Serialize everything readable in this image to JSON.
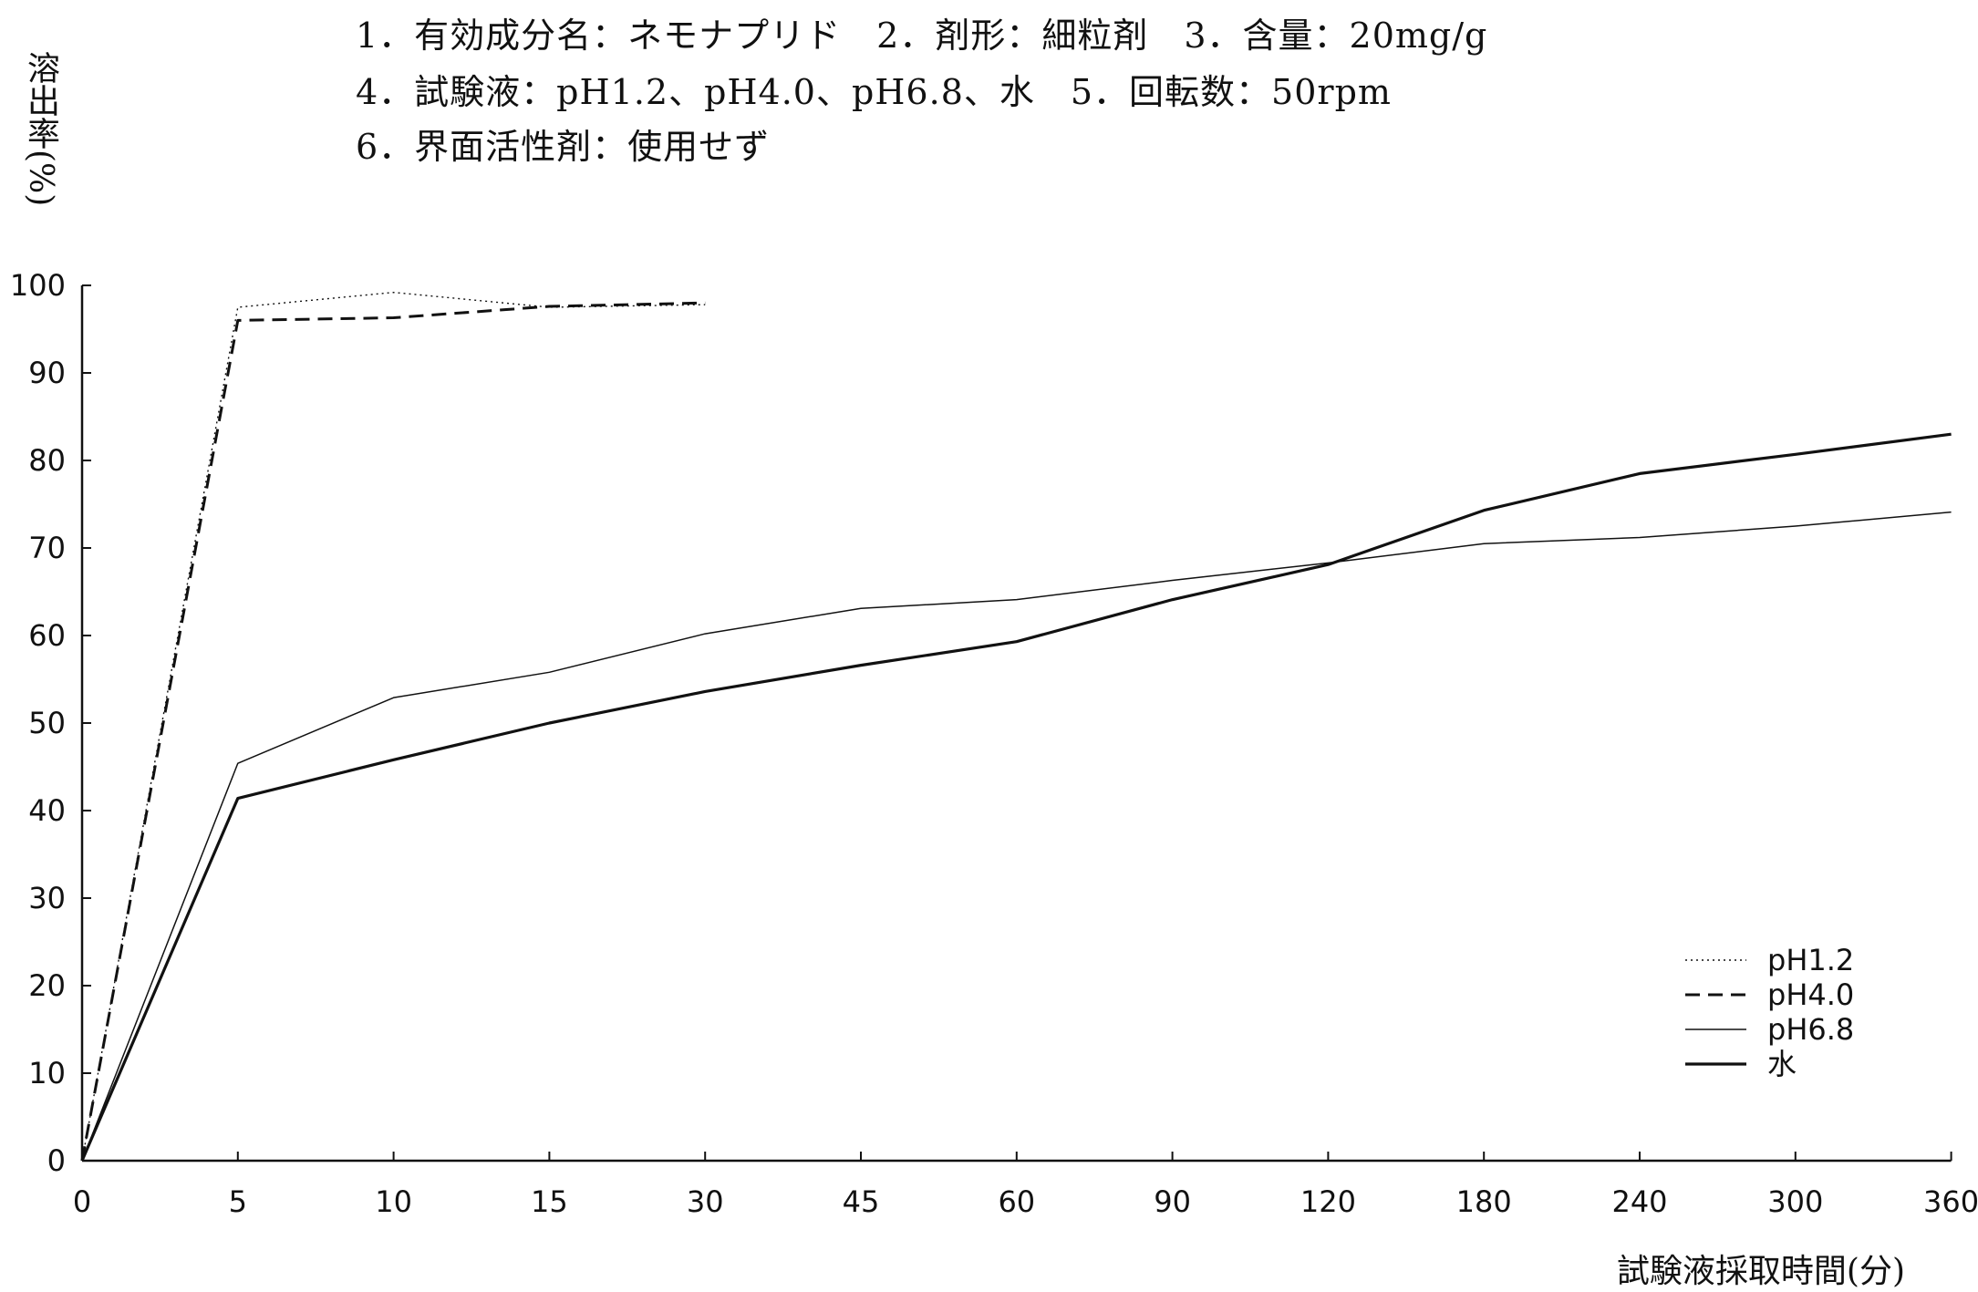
{
  "header": {
    "line1": "1．有効成分名：ネモナプリド　2．剤形：細粒剤　3．含量：20mg/g",
    "line2": "4．試験液：pH1.2、pH4.0、pH6.8、水　5．回転数：50rpm",
    "line3": "6．界面活性剤：使用せず"
  },
  "chart_data": {
    "type": "line",
    "title": "",
    "ylabel": "溶出率(%)",
    "xlabel": "試験液採取時間(分)",
    "categories": [
      "0",
      "5",
      "10",
      "15",
      "30",
      "45",
      "60",
      "90",
      "120",
      "180",
      "240",
      "300",
      "360"
    ],
    "x_axis_scale": "categorical (equally spaced sampling times)",
    "ylim": [
      0,
      100
    ],
    "yticks": [
      "0",
      "10",
      "20",
      "30",
      "40",
      "50",
      "60",
      "70",
      "80",
      "90",
      "100"
    ],
    "grid": false,
    "legend_position": "bottom-right",
    "series": [
      {
        "name": "pH1.2",
        "style": "dotted",
        "values": [
          0,
          97.5,
          99.2,
          97.5,
          97.8,
          null,
          null,
          null,
          null,
          null,
          null,
          null,
          null
        ]
      },
      {
        "name": "pH4.0",
        "style": "dashed",
        "values": [
          0,
          96,
          96.3,
          97.6,
          98,
          null,
          null,
          null,
          null,
          null,
          null,
          null,
          null
        ]
      },
      {
        "name": "pH6.8",
        "style": "thin",
        "values": [
          0,
          45.4,
          52.9,
          55.8,
          60.2,
          63.1,
          64.1,
          66.3,
          68.3,
          70.5,
          71.2,
          72.5,
          74.1
        ]
      },
      {
        "name": "水",
        "style": "thick",
        "values": [
          0,
          41.4,
          45.8,
          50,
          53.6,
          56.6,
          59.3,
          64.1,
          68.1,
          74.3,
          78.5,
          80.7,
          83
        ]
      }
    ],
    "colors": {
      "lines": "#111111",
      "background": "#ffffff"
    }
  }
}
